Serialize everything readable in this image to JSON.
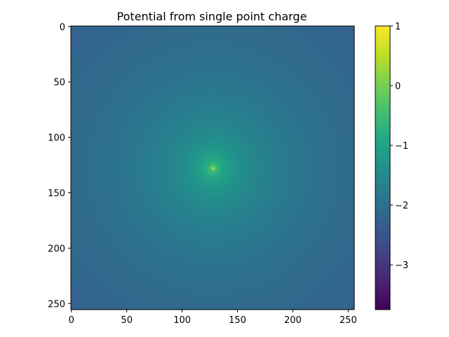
{
  "chart_data": {
    "type": "heatmap",
    "title": "Potential from single point charge",
    "xlabel": "",
    "ylabel": "",
    "grid": false,
    "colormap": "viridis",
    "image_size": [
      256,
      256
    ],
    "charge_position": {
      "x": 128,
      "y": 128
    },
    "value_function": "log10(1/r) (point-charge potential, clipped at the charge)",
    "x_ticks": [
      "0",
      "50",
      "100",
      "150",
      "200",
      "250"
    ],
    "y_ticks": [
      "0",
      "50",
      "100",
      "150",
      "200",
      "250"
    ],
    "xlim": [
      -0.5,
      255.5
    ],
    "ylim": [
      255.5,
      -0.5
    ],
    "colorbar": {
      "range": [
        -3.75,
        1
      ],
      "ticks": [
        "1",
        "0",
        "−1",
        "−2",
        "−3"
      ],
      "tick_values": [
        1,
        0,
        -1,
        -2,
        -3
      ]
    }
  }
}
